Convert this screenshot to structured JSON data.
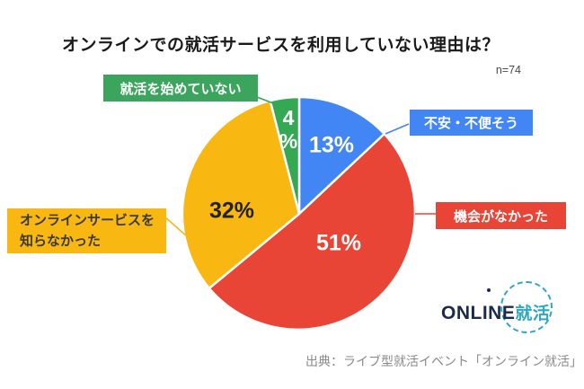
{
  "header": {
    "title": "オンラインでの就活サービスを利用していない理由は？",
    "sample_size": "n=74"
  },
  "chart_data": {
    "type": "pie",
    "title": "オンラインでの就活サービスを利用していない理由は？",
    "n": 74,
    "unit": "percent",
    "direction": "clockwise",
    "start_angle": "12-oclock",
    "slices": [
      {
        "key": "blue",
        "label": "不安・不便そう",
        "value_pct": 13,
        "pct_label": "13%",
        "color": "#4285f4",
        "pct_text_color": "#ffffff"
      },
      {
        "key": "red",
        "label": "機会がなかった",
        "value_pct": 51,
        "pct_label": "51%",
        "color": "#e94536",
        "pct_text_color": "#ffffff"
      },
      {
        "key": "yellow",
        "label": "オンラインサービスを知らなかった",
        "value_pct": 32,
        "pct_label": "32%",
        "color": "#f9b711",
        "pct_text_color": "#222222"
      },
      {
        "key": "green",
        "label": "就活を始めていない",
        "value_pct": 4,
        "pct_label": "4%",
        "color": "#34a853",
        "pct_text_color": "#ffffff"
      }
    ]
  },
  "callouts": {
    "green_bg": "#3ba55d",
    "yellow_line1": "オンラインサービスを",
    "yellow_line2": "知らなかった",
    "yellow_text_color": "#3a3a3a"
  },
  "green_pct_display": {
    "line1": "4",
    "line2": "%"
  },
  "footer": {
    "source": "出典：ライブ型就活イベント「オンライン就活」"
  },
  "logo": {
    "word": "ONLINE",
    "suffix": "就活",
    "dark_color": "#1b2b4a",
    "accent_color": "#2fa6c4"
  }
}
